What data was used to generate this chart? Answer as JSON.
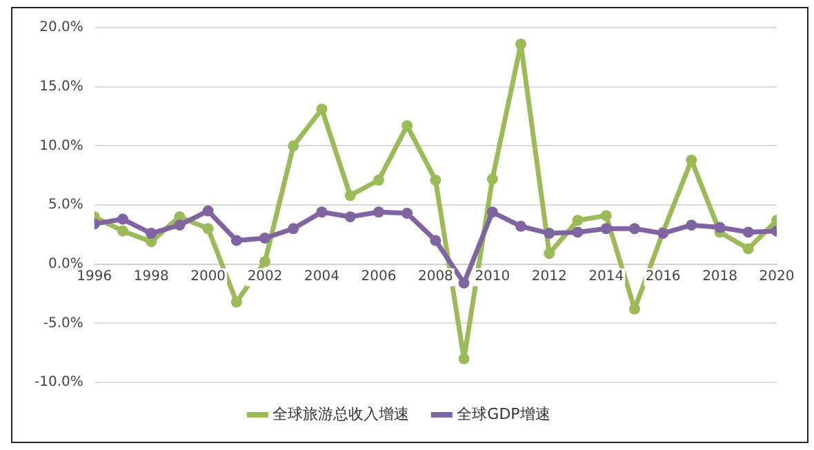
{
  "chart_data": {
    "type": "line",
    "x": [
      1996,
      1997,
      1998,
      1999,
      2000,
      2001,
      2002,
      2003,
      2004,
      2005,
      2006,
      2007,
      2008,
      2009,
      2010,
      2011,
      2012,
      2013,
      2014,
      2015,
      2016,
      2017,
      2018,
      2019,
      2020
    ],
    "series": [
      {
        "name": "全球旅游总收入增速",
        "color": "#9bbb59",
        "values": [
          4.0,
          2.8,
          1.9,
          4.0,
          3.0,
          -3.2,
          0.2,
          10.0,
          13.1,
          5.8,
          7.1,
          11.7,
          7.1,
          -8.0,
          7.2,
          18.6,
          0.9,
          3.7,
          4.1,
          -3.8,
          2.7,
          8.8,
          2.7,
          1.3,
          3.7
        ]
      },
      {
        "name": "全球GDP增速",
        "color": "#8064a2",
        "values": [
          3.4,
          3.8,
          2.6,
          3.3,
          4.5,
          2.0,
          2.2,
          3.0,
          4.4,
          4.0,
          4.4,
          4.3,
          2.0,
          -1.6,
          4.4,
          3.2,
          2.6,
          2.7,
          3.0,
          3.0,
          2.6,
          3.3,
          3.1,
          2.7,
          2.8
        ]
      }
    ],
    "xlim": [
      1996,
      2020
    ],
    "xticks": [
      1996,
      1998,
      2000,
      2002,
      2004,
      2006,
      2008,
      2010,
      2012,
      2014,
      2016,
      2018,
      2020
    ],
    "ylim": [
      -10,
      20
    ],
    "yticks": [
      {
        "value": -10,
        "label": "-10.0%"
      },
      {
        "value": -5,
        "label": "-5.0%"
      },
      {
        "value": 0,
        "label": "0.0%"
      },
      {
        "value": 5,
        "label": "5.0%"
      },
      {
        "value": 10,
        "label": "10.0%"
      },
      {
        "value": 15,
        "label": "15.0%"
      },
      {
        "value": 20,
        "label": "20.0%"
      }
    ],
    "grid": "y",
    "legend": "bottom",
    "marker": "circle",
    "line_style": "solid"
  }
}
